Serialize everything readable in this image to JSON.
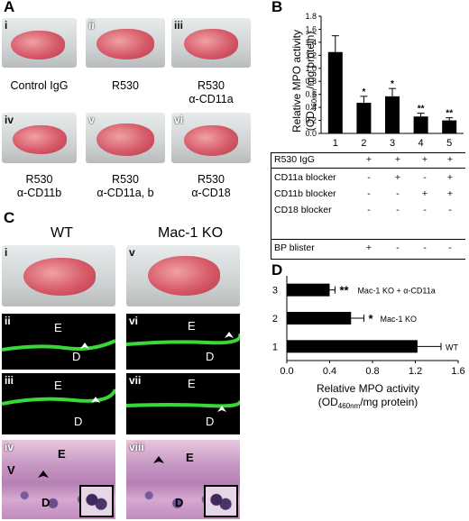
{
  "panel_labels": {
    "a": "A",
    "b": "B",
    "c": "C",
    "d": "D"
  },
  "panel_a": {
    "photos": [
      {
        "numeral": "i",
        "caption_line1": "Control IgG",
        "caption_line2": ""
      },
      {
        "numeral": "ii",
        "caption_line1": "R530",
        "caption_line2": ""
      },
      {
        "numeral": "iii",
        "caption_line1": "R530",
        "caption_line2": "α-CD11a"
      },
      {
        "numeral": "iv",
        "caption_line1": "R530",
        "caption_line2": "α-CD11b"
      },
      {
        "numeral": "v",
        "caption_line1": "R530",
        "caption_line2": "α-CD11a, b"
      },
      {
        "numeral": "vi",
        "caption_line1": "R530",
        "caption_line2": "α-CD18"
      }
    ]
  },
  "panel_c": {
    "col_wt": "WT",
    "col_ko": "Mac-1 KO",
    "numerals": [
      "i",
      "ii",
      "iii",
      "iv",
      "v",
      "vi",
      "vii",
      "viii"
    ],
    "letter_e": "E",
    "letter_d": "D",
    "letter_v": "V"
  },
  "panel_b_table": {
    "rows": [
      {
        "label": "R530 IgG",
        "cells": [
          "+",
          "+",
          "+",
          "+",
          "+"
        ]
      },
      {
        "label": "CD11a blocker",
        "cells": [
          "-",
          "+",
          "-",
          "+",
          "-"
        ]
      },
      {
        "label": "CD11b blocker",
        "cells": [
          "-",
          "-",
          "+",
          "+",
          "-"
        ]
      },
      {
        "label": "CD18 blocker",
        "cells": [
          "-",
          "-",
          "-",
          "-",
          "+"
        ]
      },
      {
        "label": "BP blister",
        "cells": [
          "+",
          "-",
          "-",
          "-",
          "-"
        ]
      }
    ]
  },
  "chart_data": [
    {
      "type": "bar",
      "panel": "B",
      "categories": [
        "1",
        "2",
        "3",
        "4",
        "5"
      ],
      "values": [
        1.25,
        0.47,
        0.57,
        0.26,
        0.2
      ],
      "errors": [
        0.25,
        0.1,
        0.12,
        0.05,
        0.04
      ],
      "significance": [
        "",
        "*",
        "*",
        "**",
        "**"
      ],
      "ylabel_line1": "Relative MPO activity",
      "ylabel_line2": "(OD",
      "ylabel_sub": "460nm",
      "ylabel_line2_end": "/mg protein)",
      "ylim": [
        0,
        1.8
      ],
      "yticks": [
        "0.0",
        "0.2",
        "0.4",
        "0.6",
        "0.8",
        "1.0",
        "1.2",
        "1.4",
        "1.6",
        "1.8"
      ],
      "bar_color": "#000000"
    },
    {
      "type": "bar",
      "orientation": "horizontal",
      "panel": "D",
      "categories": [
        "1",
        "2",
        "3"
      ],
      "values": [
        1.22,
        0.6,
        0.4
      ],
      "errors": [
        0.22,
        0.12,
        0.05
      ],
      "significance": [
        "",
        "*",
        "**"
      ],
      "bar_labels": [
        "WT",
        "Mac-1 KO",
        "Mac-1 KO + α-CD11a"
      ],
      "xlabel_line1": "Relative MPO activity",
      "xlabel_line2": "(OD",
      "xlabel_sub": "460nm",
      "xlabel_line2_end": "/mg protein)",
      "xlim": [
        0,
        1.6
      ],
      "xticks": [
        "0.0",
        "0.4",
        "0.8",
        "1.2",
        "1.6"
      ],
      "bar_color": "#000000"
    }
  ]
}
